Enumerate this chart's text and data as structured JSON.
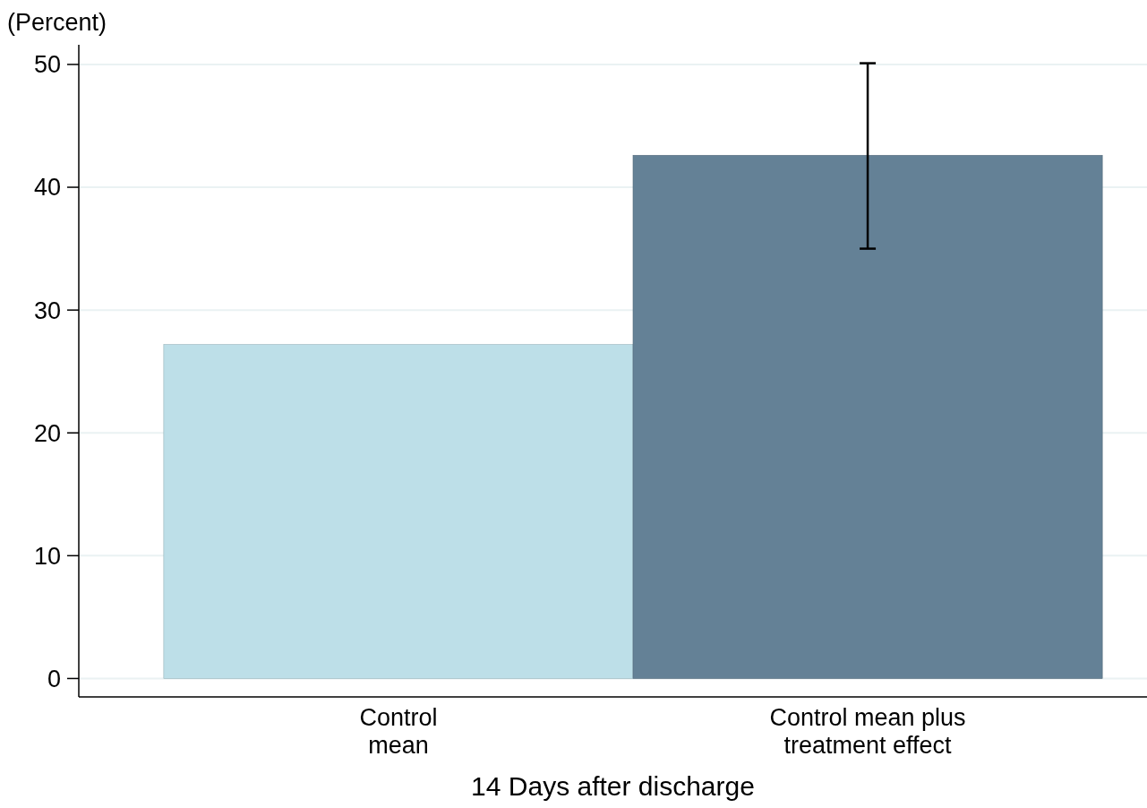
{
  "chart_data": {
    "type": "bar",
    "ylabel": "(Percent)",
    "xlabel": "14 Days after discharge",
    "categories": [
      "Control\nmean",
      "Control mean plus\ntreatment effect"
    ],
    "values": [
      27.2,
      42.6
    ],
    "colors": [
      "#bddfe8",
      "#648196"
    ],
    "errors": [
      null,
      [
        35.0,
        50.1
      ]
    ],
    "ylim": [
      -1.5,
      51.6
    ],
    "yticks": [
      0,
      10,
      20,
      30,
      40,
      50
    ],
    "grid": "y"
  }
}
